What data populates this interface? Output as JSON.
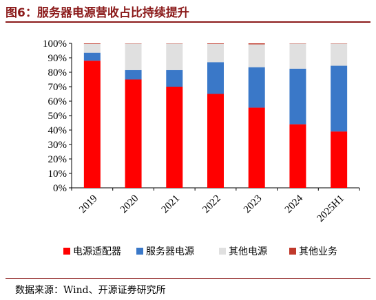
{
  "title": "图6：服务器电源营收占比持续提升",
  "source": "数据来源：Wind、开源证券研究所",
  "chart_data": {
    "type": "bar",
    "stacked": true,
    "categories": [
      "2019",
      "2020",
      "2021",
      "2022",
      "2023",
      "2024",
      "2025H1"
    ],
    "series": [
      {
        "name": "电源适配器",
        "color": "#ff0000",
        "values": [
          88,
          75,
          70,
          65,
          55.5,
          44,
          39
        ]
      },
      {
        "name": "服务器电源",
        "color": "#3a78c8",
        "values": [
          5.5,
          6.5,
          11.5,
          22,
          28,
          38.5,
          45.5
        ]
      },
      {
        "name": "其他电源",
        "color": "#e0e0e0",
        "values": [
          6.1,
          18.3,
          18.3,
          12.6,
          15.8,
          17.3,
          15.3
        ]
      },
      {
        "name": "其他业务",
        "color": "#c0392b",
        "values": [
          0.4,
          0.2,
          0.2,
          0.4,
          0.7,
          0.2,
          0.2
        ]
      }
    ],
    "yticks": [
      "0%",
      "10%",
      "20%",
      "30%",
      "40%",
      "50%",
      "60%",
      "70%",
      "80%",
      "90%",
      "100%"
    ],
    "ylim": [
      0,
      100
    ],
    "grid": false,
    "legend_position": "bottom"
  }
}
